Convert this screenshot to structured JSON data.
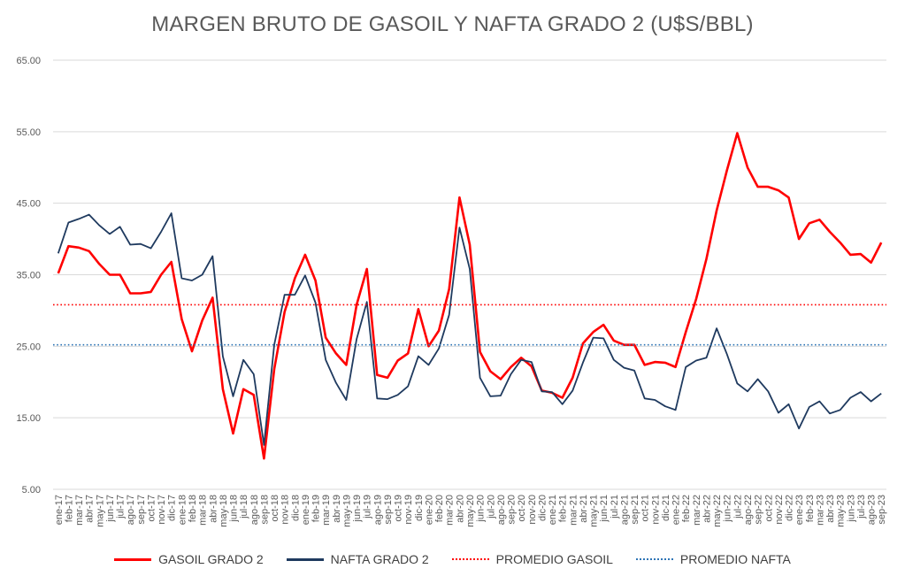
{
  "chart_data": {
    "type": "line",
    "title": "MARGEN BRUTO DE GASOIL Y NAFTA GRADO 2 (U$S/BBL)",
    "ylim": [
      5,
      65
    ],
    "yticks": [
      "5.00",
      "15.00",
      "25.00",
      "35.00",
      "45.00",
      "55.00",
      "65.00"
    ],
    "grid": true,
    "legend_position": "bottom",
    "categories": [
      "ene-17",
      "feb-17",
      "mar-17",
      "abr-17",
      "may-17",
      "jun-17",
      "jul-17",
      "ago-17",
      "sep-17",
      "oct-17",
      "nov-17",
      "dic-17",
      "ene-18",
      "feb-18",
      "mar-18",
      "abr-18",
      "may-18",
      "jun-18",
      "jul-18",
      "ago-18",
      "sep-18",
      "oct-18",
      "nov-18",
      "dic-18",
      "ene-19",
      "feb-19",
      "mar-19",
      "abr-19",
      "may-19",
      "jun-19",
      "jul-19",
      "ago-19",
      "sep-19",
      "oct-19",
      "nov-19",
      "dic-19",
      "ene-20",
      "feb-20",
      "mar-20",
      "abr-20",
      "may-20",
      "jun-20",
      "jul-20",
      "ago-20",
      "sep-20",
      "oct-20",
      "nov-20",
      "dic-20",
      "ene-21",
      "feb-21",
      "mar-21",
      "abr-21",
      "may-21",
      "jun-21",
      "jul-21",
      "ago-21",
      "sep-21",
      "oct-21",
      "nov-21",
      "dic-21",
      "ene-22",
      "feb-22",
      "mar-22",
      "abr-22",
      "may-22",
      "jun-22",
      "jul-22",
      "ago-22",
      "sep-22",
      "oct-22",
      "nov-22",
      "dic-22",
      "ene-23",
      "feb-23",
      "mar-23",
      "abr-23",
      "may-23",
      "jun-23",
      "jul-23",
      "ago-23",
      "sep-23"
    ],
    "series": [
      {
        "name": "GASOIL GRADO 2",
        "color": "#ff0000",
        "style": "solid",
        "values": [
          35.2,
          39.0,
          38.8,
          38.3,
          36.5,
          35.0,
          35.0,
          32.4,
          32.4,
          32.6,
          35.0,
          36.8,
          28.8,
          24.3,
          28.6,
          31.8,
          19.0,
          12.8,
          19.0,
          18.2,
          9.3,
          21.8,
          29.8,
          34.5,
          37.8,
          34.2,
          26.2,
          24.0,
          22.4,
          30.8,
          35.8,
          21.0,
          20.6,
          23.0,
          24.0,
          30.2,
          25.0,
          27.2,
          33.0,
          45.8,
          39.2,
          24.2,
          21.5,
          20.4,
          22.1,
          23.4,
          22.2,
          18.8,
          18.5,
          17.8,
          20.6,
          25.4,
          27.0,
          28.0,
          25.8,
          25.2,
          25.2,
          22.4,
          22.8,
          22.7,
          22.1,
          27.0,
          31.6,
          37.2,
          44.0,
          49.6,
          54.8,
          50.0,
          47.3,
          47.3,
          46.8,
          45.8,
          40.0,
          42.2,
          42.7,
          41.0,
          39.5,
          37.8,
          37.9,
          36.7,
          39.5
        ]
      },
      {
        "name": "NAFTA GRADO 2",
        "color": "#1f3a5f",
        "style": "solid",
        "values": [
          38.0,
          42.3,
          42.8,
          43.4,
          41.9,
          40.7,
          41.7,
          39.2,
          39.3,
          38.7,
          41.0,
          43.6,
          34.5,
          34.2,
          35.0,
          37.6,
          23.6,
          18.0,
          23.1,
          21.1,
          11.2,
          25.2,
          32.2,
          32.2,
          34.9,
          31.1,
          23.1,
          19.9,
          17.5,
          26.0,
          31.2,
          17.7,
          17.6,
          18.2,
          19.4,
          23.6,
          22.4,
          24.7,
          29.4,
          41.6,
          35.8,
          20.6,
          18.0,
          18.1,
          21.1,
          23.1,
          22.8,
          18.7,
          18.6,
          16.9,
          18.8,
          22.7,
          26.2,
          26.1,
          23.1,
          22.0,
          21.6,
          17.7,
          17.5,
          16.6,
          16.1,
          22.1,
          23.0,
          23.4,
          27.5,
          23.9,
          19.8,
          18.7,
          20.4,
          18.7,
          15.7,
          16.9,
          13.5,
          16.5,
          17.3,
          15.6,
          16.1,
          17.8,
          18.6,
          17.3,
          18.4
        ]
      },
      {
        "name": "PROMEDIO GASOIL",
        "color": "#ff0000",
        "style": "dotted",
        "constant": 30.8
      },
      {
        "name": "PROMEDIO NAFTA",
        "color": "#2e75b6",
        "style": "dotted",
        "constant": 25.2
      }
    ]
  }
}
